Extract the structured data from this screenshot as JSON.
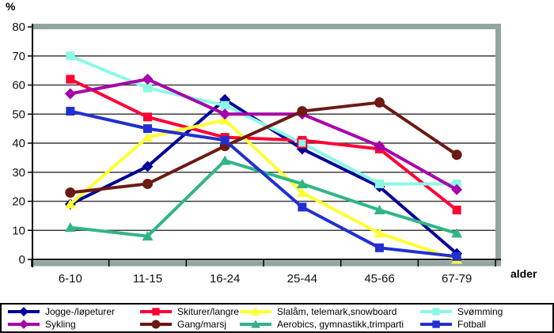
{
  "chart_data": {
    "type": "line",
    "title": "",
    "xlabel": "alder",
    "ylabel": "%",
    "ylim": [
      0,
      80
    ],
    "ytick_step": 10,
    "ytick_labels": [
      "0",
      "10",
      "20",
      "30",
      "40",
      "50",
      "60",
      "70",
      "80"
    ],
    "grid": true,
    "legend_position": "bottom",
    "categories": [
      "6-10",
      "11-15",
      "16-24",
      "25-44",
      "45-66",
      "67-79"
    ],
    "series": [
      {
        "name": "Jogge-/løpeturer",
        "color": "#000099",
        "marker": "diamond",
        "values": [
          19,
          32,
          55,
          38,
          25,
          2
        ]
      },
      {
        "name": "Skiturer/langrenn",
        "color": "#FF0033",
        "marker": "square",
        "values": [
          62,
          49,
          42,
          41,
          38,
          17
        ]
      },
      {
        "name": "Slalåm, telemark,snowboard",
        "color": "#FFFF33",
        "marker": "triangle",
        "values": [
          19,
          42,
          48,
          23,
          9,
          0
        ]
      },
      {
        "name": "Svømming",
        "color": "#8CF8E6",
        "marker": "square",
        "values": [
          70,
          59,
          53,
          40,
          26,
          26
        ]
      },
      {
        "name": "Sykling",
        "color": "#A800A8",
        "marker": "diamond",
        "values": [
          57,
          62,
          50,
          50,
          39,
          24
        ]
      },
      {
        "name": "Gang/marsj",
        "color": "#6B1A14",
        "marker": "circle",
        "values": [
          23,
          26,
          39,
          51,
          54,
          36
        ]
      },
      {
        "name": "Aerobics, gymnastikk,trimparti",
        "color": "#31B585",
        "marker": "triangle",
        "values": [
          11,
          8,
          34,
          26,
          17,
          9
        ]
      },
      {
        "name": "Fotball",
        "color": "#2230D0",
        "marker": "square",
        "values": [
          51,
          45,
          41,
          18,
          4,
          1
        ]
      }
    ],
    "marker_overrides": [
      {
        "series_index": 3,
        "point_index": 3,
        "stroke": "#FF0033",
        "stroke_width": 2
      }
    ],
    "frame_color": "#92A5A0",
    "gridline_color": "#3F3F3F",
    "axis_color": "#000000"
  }
}
